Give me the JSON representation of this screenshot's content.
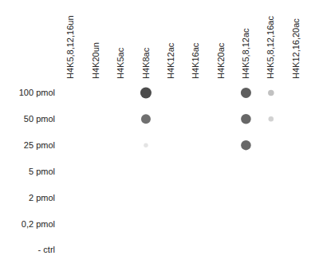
{
  "chart_data": {
    "type": "dot_blot",
    "categories": [
      "H4K5,8,12,16un",
      "H4K20un",
      "H4K5ac",
      "H4K8ac",
      "H4K12ac",
      "H4K16ac",
      "H4K20ac",
      "H4K5,8,12ac",
      "H4K5,8,12,16ac",
      "H4K12,16,20ac"
    ],
    "rows": [
      "100 pmol",
      "50 pmol",
      "25 pmol",
      "5 pmol",
      "2 pmol",
      "0,2 pmol",
      "- ctrl"
    ],
    "cells": [
      [
        0,
        0,
        0,
        1.0,
        0,
        0,
        0,
        0.9,
        0.35,
        0
      ],
      [
        0,
        0,
        0,
        0.8,
        0,
        0,
        0,
        0.85,
        0.25,
        0
      ],
      [
        0,
        0,
        0,
        0.15,
        0,
        0,
        0,
        0.85,
        0,
        0
      ],
      [
        0,
        0,
        0,
        0,
        0,
        0,
        0,
        0,
        0,
        0
      ],
      [
        0,
        0,
        0,
        0,
        0,
        0,
        0,
        0,
        0,
        0
      ],
      [
        0,
        0,
        0,
        0,
        0,
        0,
        0,
        0,
        0,
        0
      ],
      [
        0,
        0,
        0,
        0,
        0,
        0,
        0,
        0,
        0,
        0
      ]
    ],
    "cell_range": [
      0,
      1
    ],
    "color": "#000000",
    "grid": false
  }
}
